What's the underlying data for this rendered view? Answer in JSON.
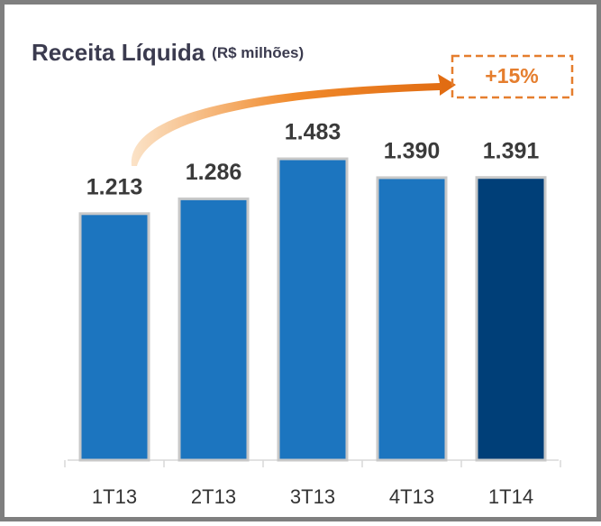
{
  "chart_data": {
    "type": "bar",
    "title": "Receita Líquida",
    "subtitle": "(R$ milhões)",
    "categories": [
      "1T13",
      "2T13",
      "3T13",
      "4T13",
      "1T14"
    ],
    "values": [
      1213,
      1286,
      1483,
      1390,
      1391
    ],
    "value_labels": [
      "1.213",
      "1.286",
      "1.483",
      "1.390",
      "1.391"
    ],
    "colors": [
      "#1c75bf",
      "#1c75bf",
      "#1c75bf",
      "#1c75bf",
      "#003f78"
    ],
    "annotation": "+15%"
  }
}
